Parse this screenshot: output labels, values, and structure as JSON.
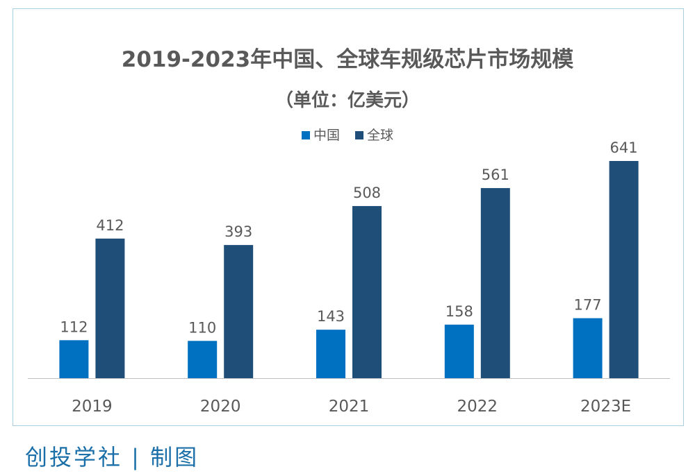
{
  "colors": {
    "china": "#0070c0",
    "global": "#1f4e79",
    "text": "#595959",
    "axis": "#bfbfbf",
    "frame": "#a9cfe0",
    "footer": "#1a6fa8"
  },
  "footer_text": "创投学社 | 制图",
  "chart_data": {
    "type": "bar",
    "title": "2019-2023年中国、全球车规级芯片市场规模",
    "subtitle": "（单位：亿美元）",
    "categories": [
      "2019",
      "2020",
      "2021",
      "2022",
      "2023E"
    ],
    "series": [
      {
        "name": "中国",
        "values": [
          112,
          110,
          143,
          158,
          177
        ]
      },
      {
        "name": "全球",
        "values": [
          412,
          393,
          508,
          561,
          641
        ]
      }
    ],
    "xlabel": "",
    "ylabel": "",
    "ylim": [
      0,
      700
    ],
    "grid": false,
    "legend_position": "top-center"
  }
}
